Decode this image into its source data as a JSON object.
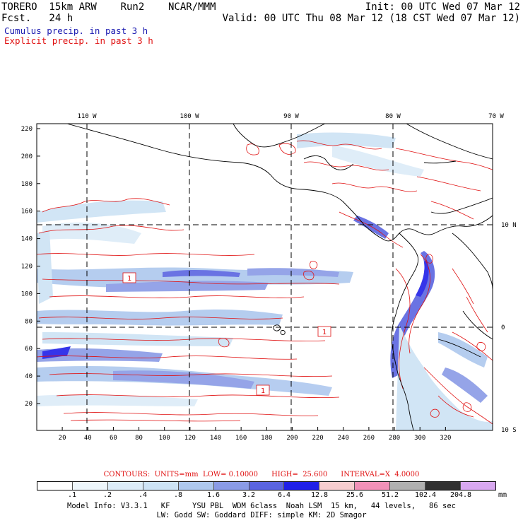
{
  "header": {
    "model": "TORERO  15km ARW    Run2    NCAR/MMM",
    "init": "Init: 00 UTC Wed 07 Mar 12",
    "forecast": "Fcst.   24 h",
    "valid": "Valid: 00 UTC Thu 08 Mar 12 (18 CST Wed 07 Mar 12)",
    "cumulus_label": "Cumulus precip. in past 3 h",
    "explicit_label": "Explicit precip. in past 3 h",
    "cumulus_color": "#1a1ab0",
    "explicit_color": "#e01010"
  },
  "map": {
    "top_lon_labels": [
      "110 W",
      "100 W",
      "90 W",
      "80 W",
      "70 W"
    ],
    "right_lat_labels": [
      "10 N",
      "0",
      "10 S"
    ],
    "x_ticks": [
      "20",
      "40",
      "60",
      "80",
      "100",
      "120",
      "140",
      "160",
      "180",
      "200",
      "220",
      "240",
      "260",
      "280",
      "300",
      "320"
    ],
    "y_ticks": [
      "20",
      "40",
      "60",
      "80",
      "100",
      "120",
      "140",
      "160",
      "180",
      "200",
      "220"
    ],
    "box_labels": [
      "1",
      "1",
      "1"
    ],
    "background": "#ffffff",
    "coast_color": "#000000",
    "grid_color": "#000000"
  },
  "contours_line": {
    "text": "CONTOURS:  UNITS=mm  LOW= 0.10000      HIGH=  25.600      INTERVAL=X  4.0000"
  },
  "colorbar": {
    "colors": [
      "#ffffff",
      "#eef6fb",
      "#dcecf8",
      "#cde3f5",
      "#aec8ee",
      "#8a9be6",
      "#5a64e0",
      "#2020e8",
      "#f7cdcf",
      "#f291b8",
      "#b0b0b0",
      "#303030",
      "#d8a8f0"
    ],
    "labels": [
      ".1",
      ".2",
      ".4",
      ".8",
      "1.6",
      "3.2",
      "6.4",
      "12.8",
      "25.6",
      "51.2",
      "102.4",
      "204.8"
    ],
    "unit": "mm"
  },
  "model_info": {
    "line1": "Model Info: V3.3.1   KF     YSU PBL  WDM 6class  Noah LSM  15 km,   44 levels,   86 sec",
    "line2": "LW: Godd SW: Goddard DIFF: simple KM: 2D Smagor"
  }
}
